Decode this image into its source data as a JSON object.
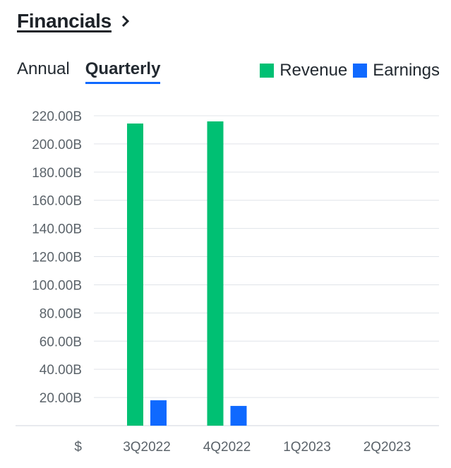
{
  "header": {
    "title": "Financials"
  },
  "tabs": [
    {
      "label": "Annual",
      "active": false
    },
    {
      "label": "Quarterly",
      "active": true
    }
  ],
  "colors": {
    "revenue": "#00c073",
    "earnings": "#0f69ff",
    "grid": "#e0e4e9",
    "tab_underline": "#0f69ff"
  },
  "chart_data": {
    "type": "bar",
    "categories": [
      "3Q2022",
      "4Q2022",
      "1Q2023",
      "2Q2023"
    ],
    "series": [
      {
        "name": "Revenue",
        "values": [
          214.5,
          216.0,
          null,
          null
        ]
      },
      {
        "name": "Earnings",
        "values": [
          18.0,
          14.0,
          null,
          null
        ]
      }
    ],
    "y_ticks": [
      "20.00B",
      "40.00B",
      "60.00B",
      "80.00B",
      "100.00B",
      "120.00B",
      "140.00B",
      "160.00B",
      "180.00B",
      "200.00B",
      "220.00B"
    ],
    "y_tick_values": [
      20,
      40,
      60,
      80,
      100,
      120,
      140,
      160,
      180,
      200,
      220
    ],
    "y_unit_label": "$",
    "ylim": [
      0,
      220
    ],
    "grid": true,
    "legend_position": "top-right"
  }
}
